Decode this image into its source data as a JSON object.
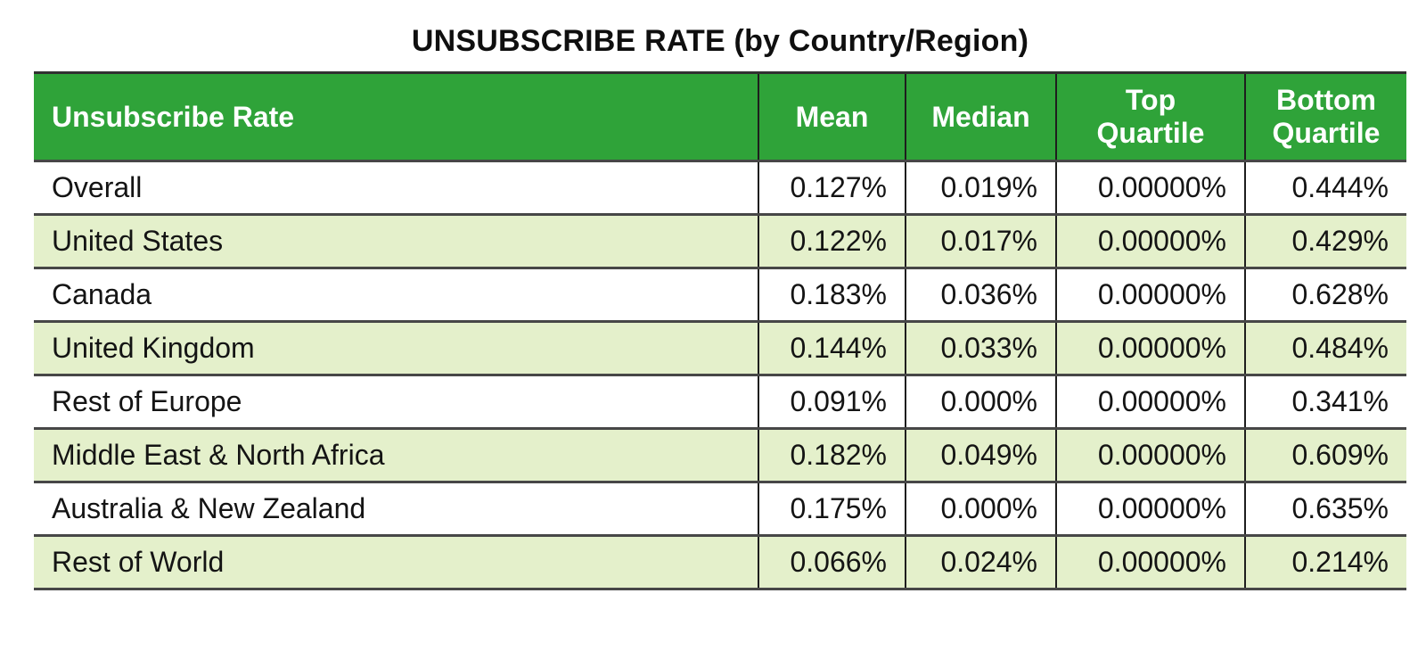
{
  "title": "UNSUBSCRIBE RATE (by Country/Region)",
  "colors": {
    "header_background": "#2FA339",
    "zebra_row_background": "#E4F0CB",
    "header_text": "#ffffff",
    "body_text": "#141414",
    "horizontal_border": "#474747",
    "vertical_border": "#1e1e1e"
  },
  "table": {
    "header_display": [
      "Unsubscribe Rate",
      "Mean",
      "Median",
      "Top\nQuartile",
      "Bottom\nQuartile"
    ]
  },
  "chart_data": {
    "type": "table",
    "title": "UNSUBSCRIBE RATE (by Country/Region)",
    "columns": [
      "Unsubscribe Rate",
      "Mean",
      "Median",
      "Top Quartile",
      "Bottom Quartile"
    ],
    "rows": [
      [
        "Overall",
        "0.127%",
        "0.019%",
        "0.00000%",
        "0.444%"
      ],
      [
        "United States",
        "0.122%",
        "0.017%",
        "0.00000%",
        "0.429%"
      ],
      [
        "Canada",
        "0.183%",
        "0.036%",
        "0.00000%",
        "0.628%"
      ],
      [
        "United Kingdom",
        "0.144%",
        "0.033%",
        "0.00000%",
        "0.484%"
      ],
      [
        "Rest of Europe",
        "0.091%",
        "0.000%",
        "0.00000%",
        "0.341%"
      ],
      [
        "Middle East & North Africa",
        "0.182%",
        "0.049%",
        "0.00000%",
        "0.609%"
      ],
      [
        "Australia & New Zealand",
        "0.175%",
        "0.000%",
        "0.00000%",
        "0.635%"
      ],
      [
        "Rest of World",
        "0.066%",
        "0.024%",
        "0.00000%",
        "0.214%"
      ]
    ]
  }
}
